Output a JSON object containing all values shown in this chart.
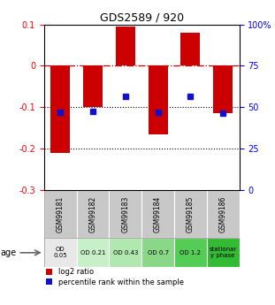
{
  "title": "GDS2589 / 920",
  "samples": [
    "GSM99181",
    "GSM99182",
    "GSM99183",
    "GSM99184",
    "GSM99185",
    "GSM99186"
  ],
  "log2_ratio": [
    -0.21,
    -0.1,
    0.095,
    -0.165,
    0.08,
    -0.115
  ],
  "percentile_rank_pct": [
    47,
    47.5,
    56.5,
    47,
    56.5,
    46.5
  ],
  "bar_color": "#cc0000",
  "dot_color": "#1111cc",
  "ylim_left": [
    -0.3,
    0.1
  ],
  "ylim_right": [
    0,
    100
  ],
  "yticks_left": [
    0.1,
    0.0,
    -0.1,
    -0.2,
    -0.3
  ],
  "yticks_right": [
    100,
    75,
    50,
    25,
    0
  ],
  "age_labels": [
    "OD\n0.05",
    "OD 0.21",
    "OD 0.43",
    "OD 0.7",
    "OD 1.2",
    "stationar\ny phase"
  ],
  "age_colors": [
    "#e8e8e8",
    "#c8f0c8",
    "#b0e8b0",
    "#88d888",
    "#55cc55",
    "#33bb33"
  ],
  "sample_bg_color": "#c8c8c8",
  "legend_red": "log2 ratio",
  "legend_blue": "percentile rank within the sample",
  "bar_width": 0.6
}
